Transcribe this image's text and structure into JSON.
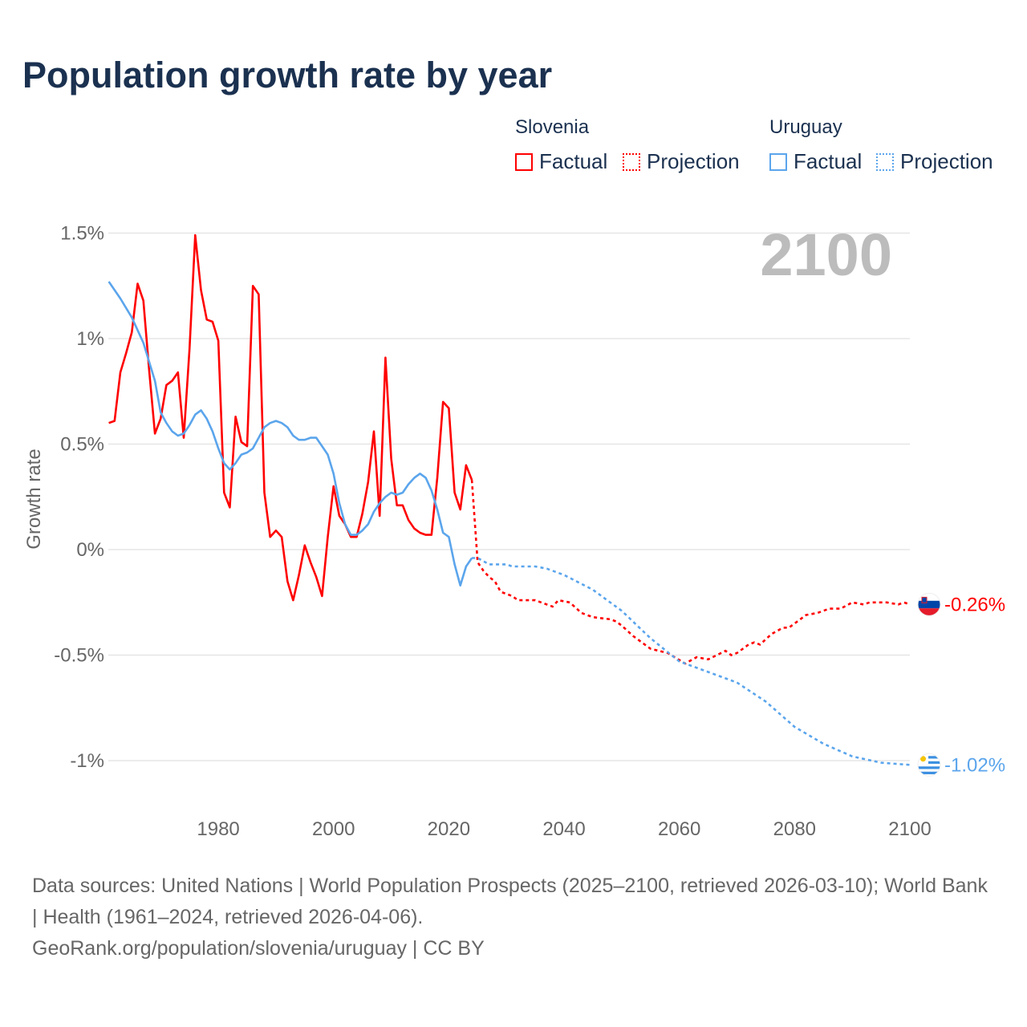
{
  "chart_data": {
    "type": "line",
    "title": "Population growth rate by year",
    "ylabel": "Growth rate",
    "xlabel": "",
    "xlim": [
      1961,
      2100
    ],
    "ylim": [
      -1.2,
      1.6
    ],
    "x_ticks": [
      1980,
      2000,
      2020,
      2040,
      2060,
      2080,
      2100
    ],
    "y_ticks": [
      {
        "v": 1.5,
        "label": "1.5%"
      },
      {
        "v": 1,
        "label": "1%"
      },
      {
        "v": 0.5,
        "label": "0.5%"
      },
      {
        "v": 0,
        "label": "0%"
      },
      {
        "v": -0.5,
        "label": "-0.5%"
      },
      {
        "v": -1,
        "label": "-1%"
      }
    ],
    "grid": true,
    "year_watermark": "2100",
    "legend": {
      "placement": "top-right",
      "groups": [
        {
          "name": "Slovenia",
          "factual": "Factual",
          "projection": "Projection"
        },
        {
          "name": "Uruguay",
          "factual": "Factual",
          "projection": "Projection"
        }
      ]
    },
    "series": [
      {
        "name": "Slovenia",
        "color": "#ff0000",
        "end_label": "-0.26%",
        "factual": [
          [
            1961,
            0.6
          ],
          [
            1962,
            0.61
          ],
          [
            1963,
            0.84
          ],
          [
            1964,
            0.93
          ],
          [
            1965,
            1.03
          ],
          [
            1966,
            1.26
          ],
          [
            1967,
            1.18
          ],
          [
            1968,
            0.85
          ],
          [
            1969,
            0.55
          ],
          [
            1970,
            0.62
          ],
          [
            1971,
            0.78
          ],
          [
            1972,
            0.8
          ],
          [
            1973,
            0.84
          ],
          [
            1974,
            0.53
          ],
          [
            1975,
            0.95
          ],
          [
            1976,
            1.49
          ],
          [
            1977,
            1.23
          ],
          [
            1978,
            1.09
          ],
          [
            1979,
            1.08
          ],
          [
            1980,
            0.99
          ],
          [
            1981,
            0.27
          ],
          [
            1982,
            0.2
          ],
          [
            1983,
            0.63
          ],
          [
            1984,
            0.51
          ],
          [
            1985,
            0.49
          ],
          [
            1986,
            1.25
          ],
          [
            1987,
            1.21
          ],
          [
            1988,
            0.27
          ],
          [
            1989,
            0.06
          ],
          [
            1990,
            0.09
          ],
          [
            1991,
            0.06
          ],
          [
            1992,
            -0.15
          ],
          [
            1993,
            -0.24
          ],
          [
            1994,
            -0.12
          ],
          [
            1995,
            0.02
          ],
          [
            1996,
            -0.06
          ],
          [
            1997,
            -0.13
          ],
          [
            1998,
            -0.22
          ],
          [
            1999,
            0.06
          ],
          [
            2000,
            0.3
          ],
          [
            2001,
            0.16
          ],
          [
            2002,
            0.12
          ],
          [
            2003,
            0.06
          ],
          [
            2004,
            0.06
          ],
          [
            2005,
            0.17
          ],
          [
            2006,
            0.32
          ],
          [
            2007,
            0.56
          ],
          [
            2008,
            0.16
          ],
          [
            2009,
            0.91
          ],
          [
            2010,
            0.43
          ],
          [
            2011,
            0.21
          ],
          [
            2012,
            0.21
          ],
          [
            2013,
            0.14
          ],
          [
            2014,
            0.1
          ],
          [
            2015,
            0.08
          ],
          [
            2016,
            0.07
          ],
          [
            2017,
            0.07
          ],
          [
            2018,
            0.34
          ],
          [
            2019,
            0.7
          ],
          [
            2020,
            0.67
          ],
          [
            2021,
            0.27
          ],
          [
            2022,
            0.19
          ],
          [
            2023,
            0.4
          ],
          [
            2024,
            0.33
          ]
        ],
        "projection": [
          [
            2024,
            0.33
          ],
          [
            2025,
            -0.06
          ],
          [
            2026,
            -0.1
          ],
          [
            2027,
            -0.13
          ],
          [
            2028,
            -0.15
          ],
          [
            2029,
            -0.2
          ],
          [
            2031,
            -0.22
          ],
          [
            2032,
            -0.24
          ],
          [
            2035,
            -0.24
          ],
          [
            2037,
            -0.26
          ],
          [
            2038,
            -0.27
          ],
          [
            2039,
            -0.24
          ],
          [
            2041,
            -0.25
          ],
          [
            2043,
            -0.3
          ],
          [
            2045,
            -0.32
          ],
          [
            2048,
            -0.33
          ],
          [
            2049,
            -0.34
          ],
          [
            2050,
            -0.36
          ],
          [
            2052,
            -0.41
          ],
          [
            2055,
            -0.47
          ],
          [
            2058,
            -0.49
          ],
          [
            2061,
            -0.54
          ],
          [
            2063,
            -0.51
          ],
          [
            2065,
            -0.52
          ],
          [
            2068,
            -0.48
          ],
          [
            2069,
            -0.5
          ],
          [
            2070,
            -0.49
          ],
          [
            2072,
            -0.45
          ],
          [
            2073,
            -0.44
          ],
          [
            2074,
            -0.45
          ],
          [
            2076,
            -0.4
          ],
          [
            2078,
            -0.37
          ],
          [
            2079,
            -0.37
          ],
          [
            2082,
            -0.31
          ],
          [
            2084,
            -0.3
          ],
          [
            2086,
            -0.28
          ],
          [
            2088,
            -0.28
          ],
          [
            2090,
            -0.25
          ],
          [
            2092,
            -0.26
          ],
          [
            2093,
            -0.25
          ],
          [
            2096,
            -0.25
          ],
          [
            2098,
            -0.26
          ],
          [
            2099,
            -0.25
          ],
          [
            2100,
            -0.26
          ]
        ]
      },
      {
        "name": "Uruguay",
        "color": "#5ba5ec",
        "end_label": "-1.02%",
        "factual": [
          [
            1961,
            1.27
          ],
          [
            1963,
            1.19
          ],
          [
            1965,
            1.1
          ],
          [
            1967,
            0.98
          ],
          [
            1969,
            0.8
          ],
          [
            1970,
            0.65
          ],
          [
            1971,
            0.6
          ],
          [
            1972,
            0.56
          ],
          [
            1973,
            0.54
          ],
          [
            1974,
            0.55
          ],
          [
            1975,
            0.59
          ],
          [
            1976,
            0.64
          ],
          [
            1977,
            0.66
          ],
          [
            1978,
            0.62
          ],
          [
            1979,
            0.56
          ],
          [
            1980,
            0.48
          ],
          [
            1981,
            0.41
          ],
          [
            1982,
            0.38
          ],
          [
            1983,
            0.41
          ],
          [
            1984,
            0.45
          ],
          [
            1985,
            0.46
          ],
          [
            1986,
            0.48
          ],
          [
            1987,
            0.53
          ],
          [
            1988,
            0.58
          ],
          [
            1989,
            0.6
          ],
          [
            1990,
            0.61
          ],
          [
            1991,
            0.6
          ],
          [
            1992,
            0.58
          ],
          [
            1993,
            0.54
          ],
          [
            1994,
            0.52
          ],
          [
            1995,
            0.52
          ],
          [
            1996,
            0.53
          ],
          [
            1997,
            0.53
          ],
          [
            1998,
            0.49
          ],
          [
            1999,
            0.45
          ],
          [
            2000,
            0.36
          ],
          [
            2001,
            0.22
          ],
          [
            2002,
            0.12
          ],
          [
            2003,
            0.07
          ],
          [
            2004,
            0.07
          ],
          [
            2005,
            0.09
          ],
          [
            2006,
            0.12
          ],
          [
            2007,
            0.18
          ],
          [
            2008,
            0.22
          ],
          [
            2009,
            0.25
          ],
          [
            2010,
            0.27
          ],
          [
            2011,
            0.26
          ],
          [
            2012,
            0.27
          ],
          [
            2013,
            0.31
          ],
          [
            2014,
            0.34
          ],
          [
            2015,
            0.36
          ],
          [
            2016,
            0.34
          ],
          [
            2017,
            0.28
          ],
          [
            2018,
            0.19
          ],
          [
            2019,
            0.08
          ],
          [
            2020,
            0.06
          ],
          [
            2021,
            -0.07
          ],
          [
            2022,
            -0.17
          ],
          [
            2023,
            -0.08
          ],
          [
            2024,
            -0.04
          ]
        ],
        "projection": [
          [
            2024,
            -0.04
          ],
          [
            2025,
            -0.04
          ],
          [
            2027,
            -0.07
          ],
          [
            2030,
            -0.07
          ],
          [
            2031,
            -0.08
          ],
          [
            2035,
            -0.08
          ],
          [
            2037,
            -0.09
          ],
          [
            2040,
            -0.12
          ],
          [
            2045,
            -0.19
          ],
          [
            2050,
            -0.29
          ],
          [
            2055,
            -0.42
          ],
          [
            2060,
            -0.53
          ],
          [
            2065,
            -0.58
          ],
          [
            2070,
            -0.63
          ],
          [
            2075,
            -0.72
          ],
          [
            2080,
            -0.84
          ],
          [
            2085,
            -0.92
          ],
          [
            2090,
            -0.98
          ],
          [
            2095,
            -1.01
          ],
          [
            2100,
            -1.02
          ]
        ]
      }
    ]
  },
  "footer": {
    "sources": "Data sources: United Nations | World Population Prospects (2025–2100, retrieved 2026-03-10); World Bank | Health (1961–2024, retrieved 2026-04-06).",
    "credit": "GeoRank.org/population/slovenia/uruguay | CC BY"
  }
}
